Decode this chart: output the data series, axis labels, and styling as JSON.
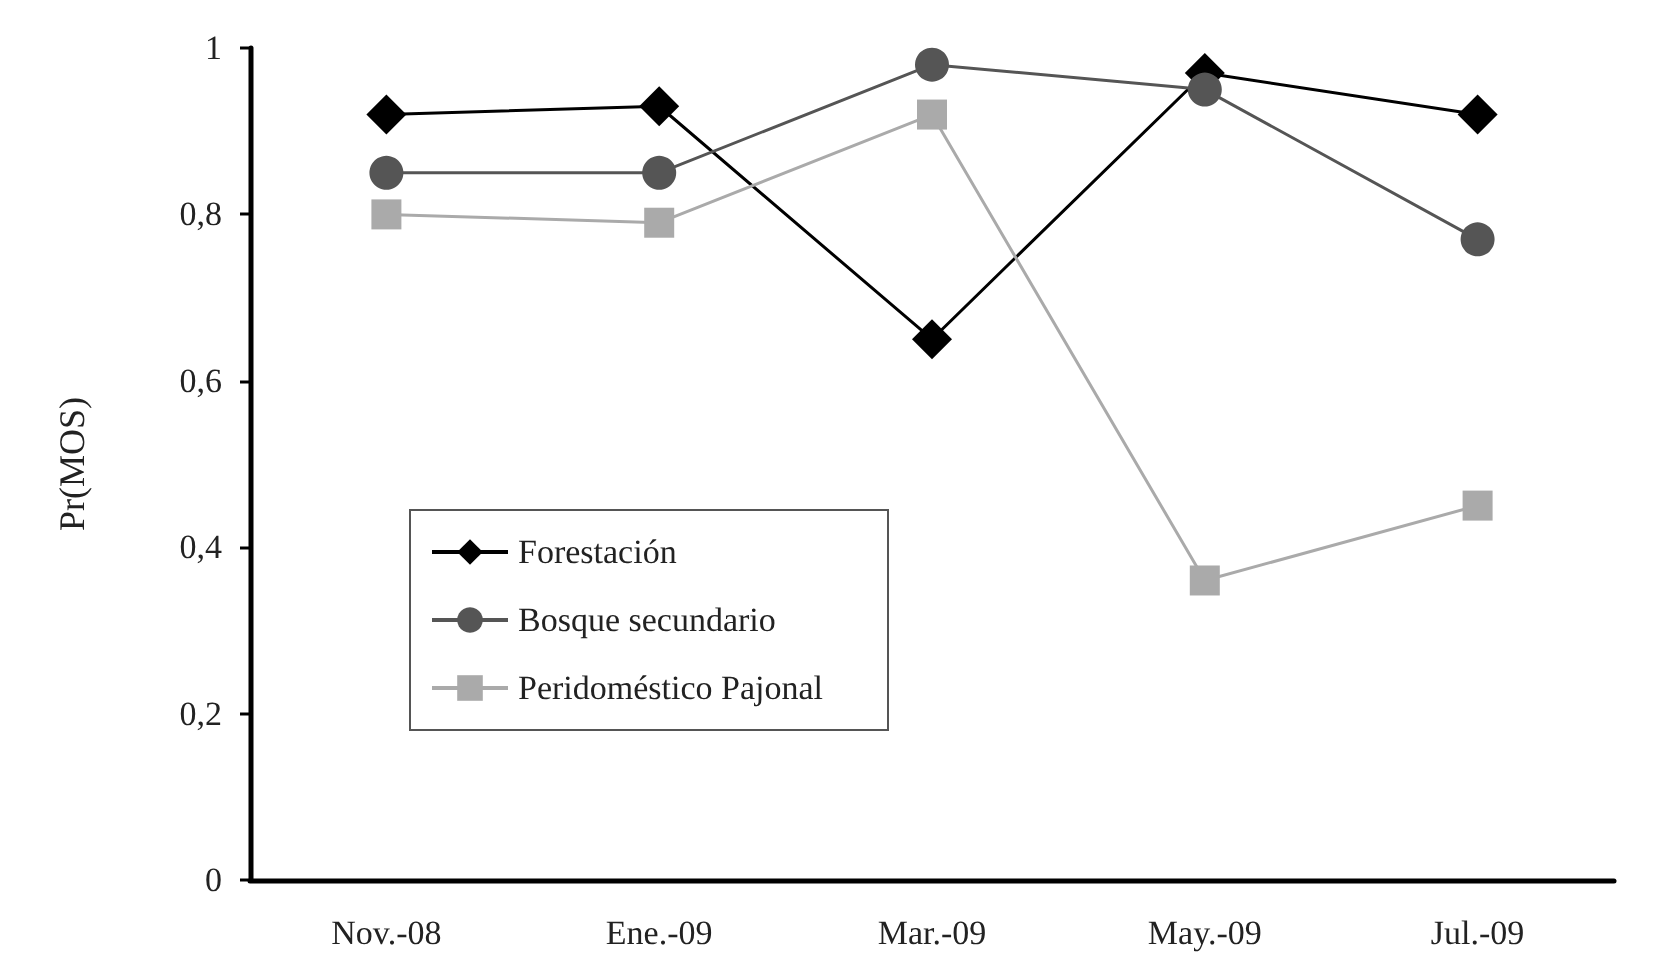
{
  "chart_data": {
    "type": "line",
    "ylabel": "Pr(MOS)",
    "categories": [
      "Nov.-08",
      "Ene.-09",
      "Mar.-09",
      "May.-09",
      "Jul.-09"
    ],
    "series": [
      {
        "name": "Forestación",
        "color": "#000000",
        "marker": "diamond",
        "values": [
          0.92,
          0.93,
          0.65,
          0.97,
          0.92
        ]
      },
      {
        "name": "Bosque secundario",
        "color": "#555555",
        "marker": "circle",
        "values": [
          0.85,
          0.85,
          0.98,
          0.95,
          0.77
        ]
      },
      {
        "name": "Peridoméstico Pajonal",
        "color": "#aaaaaa",
        "marker": "square",
        "values": [
          0.8,
          0.79,
          0.92,
          0.36,
          0.45
        ]
      }
    ],
    "ylim": [
      0,
      1
    ],
    "yticks": [
      {
        "value": 0,
        "label": "0"
      },
      {
        "value": 0.2,
        "label": "0,2"
      },
      {
        "value": 0.4,
        "label": "0,4"
      },
      {
        "value": 0.6,
        "label": "0,6"
      },
      {
        "value": 0.8,
        "label": "0,8"
      },
      {
        "value": 1,
        "label": "1"
      }
    ],
    "grid": false,
    "legend": "left",
    "line_style": "solid"
  }
}
